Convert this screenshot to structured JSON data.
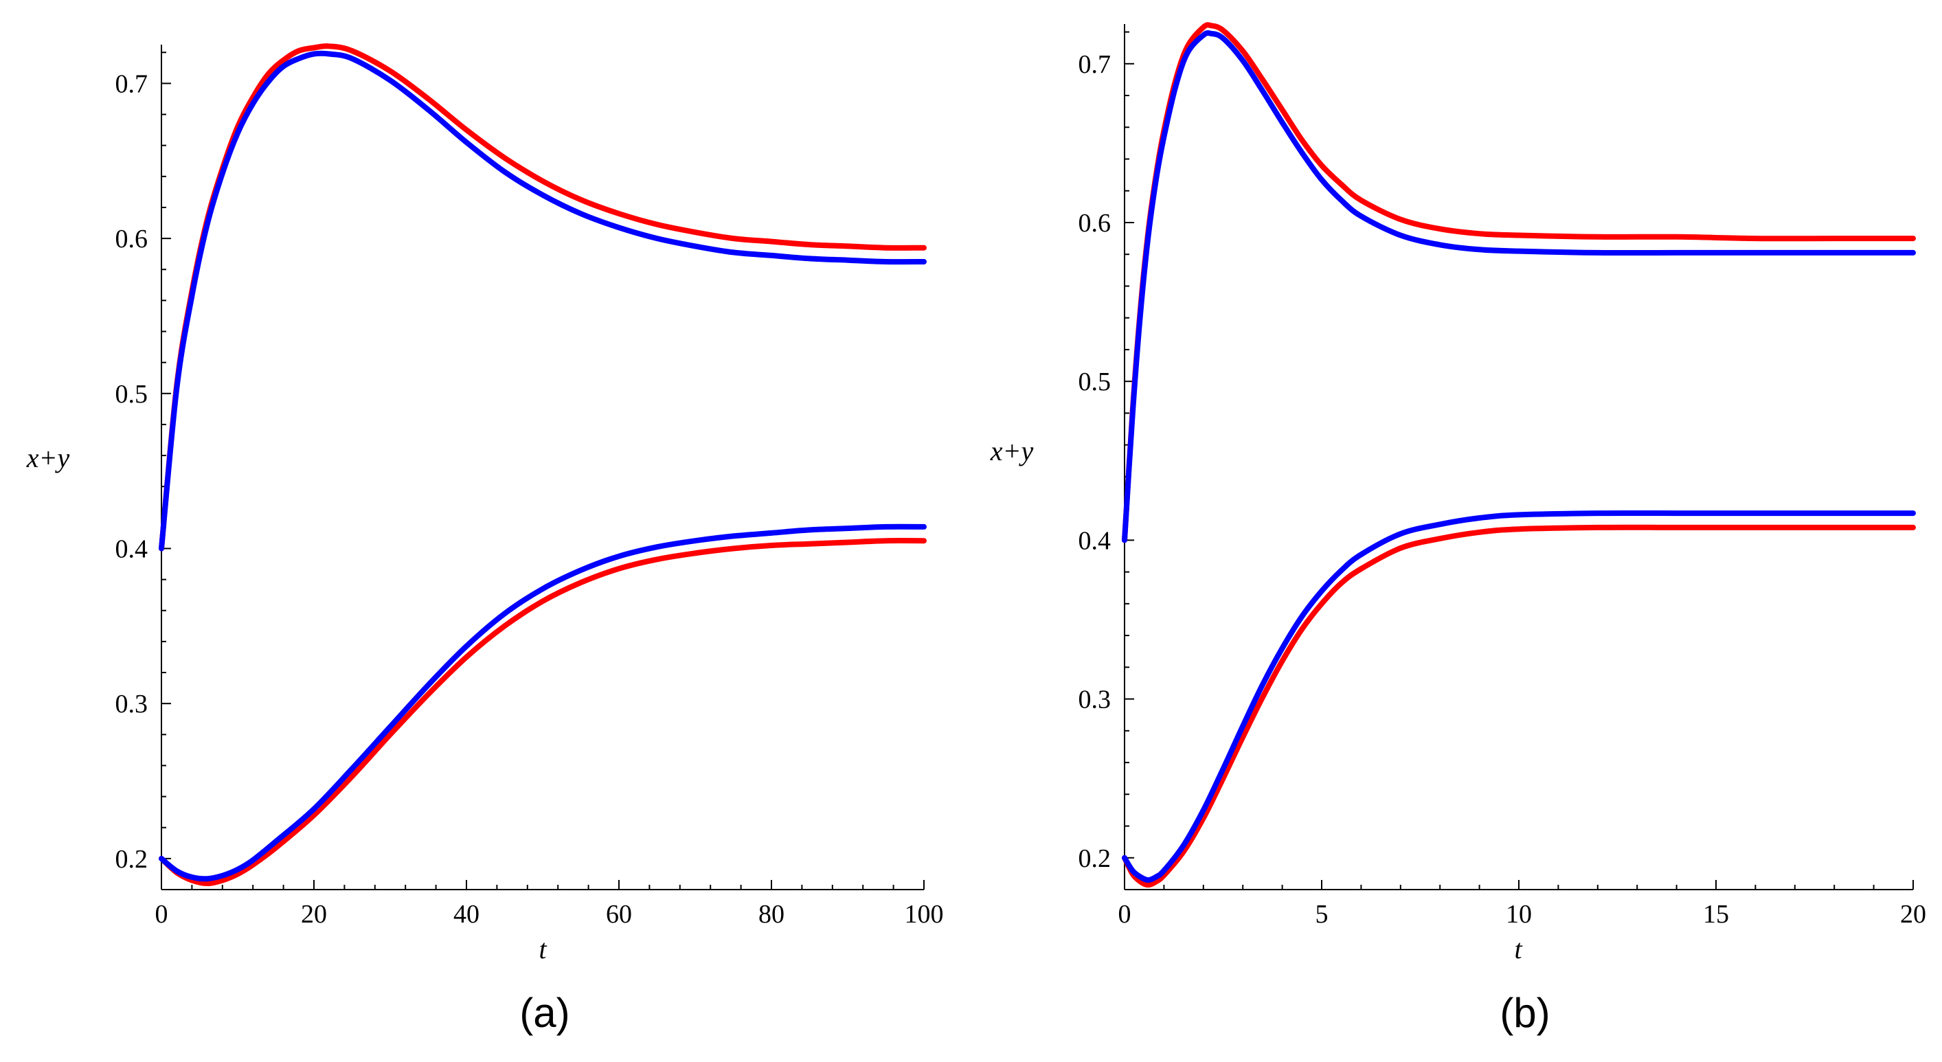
{
  "chart_data": [
    {
      "type": "line",
      "panel_label": "(a)",
      "xlabel": "t",
      "ylabel": "x+y",
      "xlim": [
        0,
        100
      ],
      "ylim": [
        0.18,
        0.725
      ],
      "xticks": [
        "0",
        "20",
        "40",
        "60",
        "80",
        "100"
      ],
      "yticks": [
        "0.2",
        "0.3",
        "0.4",
        "0.5",
        "0.6",
        "0.7"
      ],
      "colors": {
        "red": "#ff0000",
        "blue": "#0000ff"
      },
      "series": [
        {
          "name": "upper-red",
          "color": "#ff0000",
          "x": [
            0,
            2,
            4,
            6,
            8,
            10,
            12,
            14,
            16,
            18,
            20,
            22,
            25,
            30,
            35,
            40,
            45,
            50,
            55,
            60,
            65,
            70,
            75,
            80,
            85,
            90,
            95,
            100
          ],
          "y": [
            0.4,
            0.505,
            0.566,
            0.612,
            0.645,
            0.672,
            0.691,
            0.706,
            0.715,
            0.721,
            0.723,
            0.724,
            0.721,
            0.708,
            0.69,
            0.67,
            0.652,
            0.637,
            0.625,
            0.616,
            0.609,
            0.604,
            0.6,
            0.598,
            0.596,
            0.595,
            0.594,
            0.594
          ]
        },
        {
          "name": "upper-blue",
          "color": "#0000ff",
          "x": [
            0,
            2,
            4,
            6,
            8,
            10,
            12,
            14,
            16,
            18,
            20,
            22,
            25,
            30,
            35,
            40,
            45,
            50,
            55,
            60,
            65,
            70,
            75,
            80,
            85,
            90,
            95,
            100
          ],
          "y": [
            0.4,
            0.503,
            0.563,
            0.609,
            0.642,
            0.668,
            0.687,
            0.701,
            0.711,
            0.716,
            0.719,
            0.719,
            0.716,
            0.702,
            0.683,
            0.662,
            0.643,
            0.628,
            0.616,
            0.607,
            0.6,
            0.595,
            0.591,
            0.589,
            0.587,
            0.586,
            0.585,
            0.585
          ]
        },
        {
          "name": "lower-red",
          "color": "#ff0000",
          "x": [
            0,
            2,
            4,
            6,
            8,
            10,
            12,
            15,
            20,
            25,
            30,
            35,
            40,
            45,
            50,
            55,
            60,
            65,
            70,
            75,
            80,
            85,
            90,
            95,
            100
          ],
          "y": [
            0.2,
            0.191,
            0.186,
            0.184,
            0.186,
            0.19,
            0.196,
            0.207,
            0.228,
            0.253,
            0.28,
            0.306,
            0.33,
            0.35,
            0.366,
            0.378,
            0.387,
            0.393,
            0.397,
            0.4,
            0.402,
            0.403,
            0.404,
            0.405,
            0.405
          ]
        },
        {
          "name": "lower-blue",
          "color": "#0000ff",
          "x": [
            0,
            2,
            4,
            6,
            8,
            10,
            12,
            15,
            20,
            25,
            30,
            35,
            40,
            45,
            50,
            55,
            60,
            65,
            70,
            75,
            80,
            85,
            90,
            95,
            100
          ],
          "y": [
            0.2,
            0.192,
            0.188,
            0.187,
            0.189,
            0.193,
            0.199,
            0.211,
            0.232,
            0.258,
            0.285,
            0.312,
            0.337,
            0.358,
            0.374,
            0.386,
            0.395,
            0.401,
            0.405,
            0.408,
            0.41,
            0.412,
            0.413,
            0.414,
            0.414
          ]
        }
      ]
    },
    {
      "type": "line",
      "panel_label": "(b)",
      "xlabel": "t",
      "ylabel": "x+y",
      "xlim": [
        0,
        20
      ],
      "ylim": [
        0.18,
        0.725
      ],
      "xticks": [
        "0",
        "5",
        "10",
        "15",
        "20"
      ],
      "yticks": [
        "0.2",
        "0.3",
        "0.4",
        "0.5",
        "0.6",
        "0.7"
      ],
      "colors": {
        "red": "#ff0000",
        "blue": "#0000ff"
      },
      "series": [
        {
          "name": "upper-red",
          "color": "#ff0000",
          "x": [
            0,
            0.2,
            0.4,
            0.6,
            0.8,
            1.0,
            1.3,
            1.6,
            2.0,
            2.2,
            2.5,
            3,
            3.5,
            4,
            4.5,
            5,
            5.5,
            6,
            7,
            8,
            9,
            10,
            12,
            14,
            16,
            18,
            20
          ],
          "y": [
            0.4,
            0.48,
            0.545,
            0.594,
            0.63,
            0.658,
            0.69,
            0.711,
            0.723,
            0.724,
            0.721,
            0.708,
            0.69,
            0.671,
            0.652,
            0.636,
            0.624,
            0.614,
            0.602,
            0.596,
            0.593,
            0.592,
            0.591,
            0.591,
            0.59,
            0.59,
            0.59
          ]
        },
        {
          "name": "upper-blue",
          "color": "#0000ff",
          "x": [
            0,
            0.2,
            0.4,
            0.6,
            0.8,
            1.0,
            1.3,
            1.6,
            2.0,
            2.2,
            2.5,
            3,
            3.5,
            4,
            4.5,
            5,
            5.5,
            6,
            7,
            8,
            9,
            10,
            12,
            14,
            16,
            18,
            20
          ],
          "y": [
            0.4,
            0.478,
            0.542,
            0.591,
            0.627,
            0.654,
            0.686,
            0.707,
            0.718,
            0.719,
            0.716,
            0.702,
            0.683,
            0.663,
            0.644,
            0.627,
            0.614,
            0.604,
            0.592,
            0.586,
            0.583,
            0.582,
            0.581,
            0.581,
            0.581,
            0.581,
            0.581
          ]
        },
        {
          "name": "lower-red",
          "color": "#ff0000",
          "x": [
            0,
            0.2,
            0.4,
            0.6,
            0.8,
            1.0,
            1.5,
            2,
            2.5,
            3,
            3.5,
            4,
            4.5,
            5,
            5.5,
            6,
            7,
            8,
            9,
            10,
            12,
            14,
            16,
            18,
            20
          ],
          "y": [
            0.2,
            0.19,
            0.185,
            0.183,
            0.185,
            0.189,
            0.204,
            0.225,
            0.25,
            0.276,
            0.301,
            0.324,
            0.344,
            0.36,
            0.373,
            0.382,
            0.395,
            0.401,
            0.405,
            0.407,
            0.408,
            0.408,
            0.408,
            0.408,
            0.408
          ]
        },
        {
          "name": "lower-blue",
          "color": "#0000ff",
          "x": [
            0,
            0.2,
            0.4,
            0.6,
            0.8,
            1.0,
            1.5,
            2,
            2.5,
            3,
            3.5,
            4,
            4.5,
            5,
            5.5,
            6,
            7,
            8,
            9,
            10,
            12,
            14,
            16,
            18,
            20
          ],
          "y": [
            0.2,
            0.192,
            0.188,
            0.186,
            0.188,
            0.192,
            0.208,
            0.23,
            0.256,
            0.283,
            0.309,
            0.332,
            0.352,
            0.368,
            0.381,
            0.391,
            0.404,
            0.41,
            0.414,
            0.416,
            0.417,
            0.417,
            0.417,
            0.417,
            0.417
          ]
        }
      ]
    }
  ]
}
